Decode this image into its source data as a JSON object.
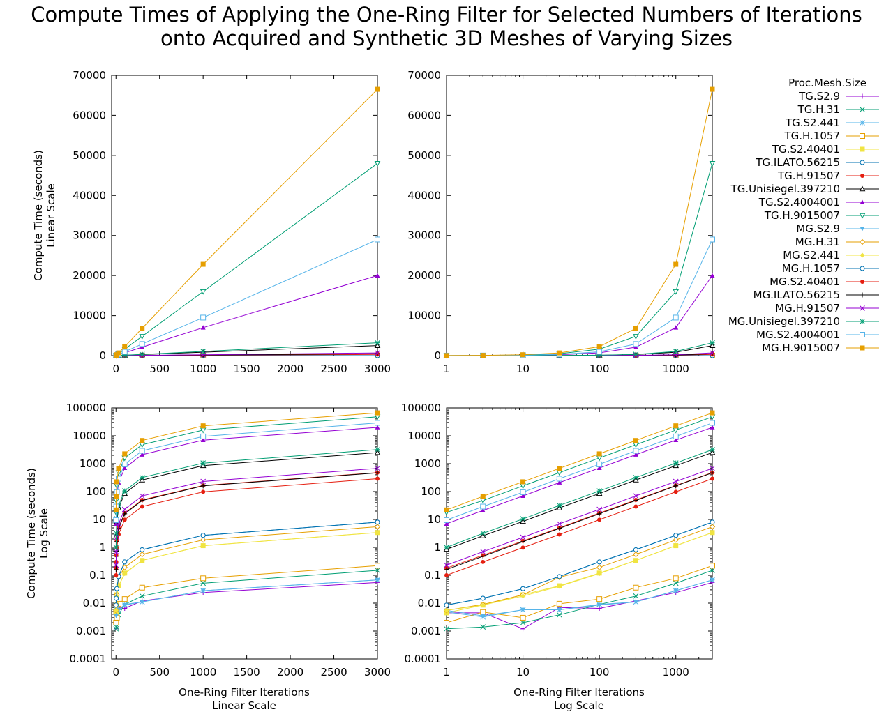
{
  "figure": {
    "title_line1": "Compute Times of Applying the One-Ring Filter for Selected Numbers of Iterations",
    "title_line2": "onto Acquired and Synthetic 3D Meshes of Varying Sizes",
    "legend_title": "Proc.Mesh.Size",
    "ylabel_top": [
      "Compute Time (seconds)",
      "Linear Scale"
    ],
    "ylabel_bottom": [
      "Compute Time (seconds)",
      "Log Scale"
    ],
    "xlabel_left": [
      "One-Ring Filter Iterations",
      "Linear Scale"
    ],
    "xlabel_right": [
      "One-Ring Filter Iterations",
      "Log Scale"
    ]
  },
  "chart_data": {
    "type": "line",
    "x": [
      1,
      3,
      10,
      30,
      100,
      300,
      1000,
      3000
    ],
    "series": [
      {
        "name": "TG.S2.9",
        "color": "#9400d3",
        "marker": "plus",
        "values": [
          0.0045,
          0.0045,
          0.0012,
          0.007,
          0.0065,
          0.012,
          0.024,
          0.055
        ]
      },
      {
        "name": "TG.H.31",
        "color": "#009e73",
        "marker": "cross",
        "values": [
          0.0012,
          0.0014,
          0.002,
          0.0038,
          0.009,
          0.018,
          0.052,
          0.15
        ]
      },
      {
        "name": "TG.S2.441",
        "color": "#56b4e9",
        "marker": "star",
        "values": [
          0.0048,
          0.0032,
          0.0058,
          0.0058,
          0.009,
          0.011,
          0.028,
          0.068
        ]
      },
      {
        "name": "TG.H.1057",
        "color": "#e69f00",
        "marker": "box",
        "values": [
          0.002,
          0.0048,
          0.003,
          0.0095,
          0.014,
          0.036,
          0.078,
          0.22
        ]
      },
      {
        "name": "TG.S2.40401",
        "color": "#f0e442",
        "marker": "fbox",
        "values": [
          0.0045,
          0.0085,
          0.02,
          0.042,
          0.12,
          0.34,
          1.15,
          3.4
        ]
      },
      {
        "name": "TG.ILATO.56215",
        "color": "#0072b2",
        "marker": "circle",
        "values": [
          0.0085,
          0.015,
          0.033,
          0.09,
          0.3,
          0.82,
          2.7,
          8.0
        ]
      },
      {
        "name": "TG.H.91507",
        "color": "#e51e10",
        "marker": "fcircle",
        "values": [
          0.18,
          0.52,
          1.7,
          5.0,
          17,
          50,
          165,
          480
        ]
      },
      {
        "name": "TG.Unisiegel.397210",
        "color": "#000000",
        "marker": "tri",
        "values": [
          0.85,
          2.6,
          8.5,
          26,
          85,
          260,
          850,
          2500
        ]
      },
      {
        "name": "TG.S2.4004001",
        "color": "#9400d3",
        "marker": "ftri",
        "values": [
          7.0,
          21,
          70,
          210,
          700,
          2100,
          7000,
          20000
        ]
      },
      {
        "name": "TG.H.9015007",
        "color": "#009e73",
        "marker": "itri",
        "values": [
          18,
          48,
          160,
          480,
          1600,
          4800,
          16000,
          48000
        ]
      },
      {
        "name": "MG.S2.9",
        "color": "#56b4e9",
        "marker": "fitri",
        "values": [
          0.0055,
          0.0035,
          0.0058,
          0.0058,
          0.0085,
          0.011,
          0.028,
          0.068
        ]
      },
      {
        "name": "MG.H.31",
        "color": "#e69f00",
        "marker": "diamond",
        "values": [
          0.0055,
          0.009,
          0.02,
          0.085,
          0.19,
          0.56,
          1.85,
          5.5
        ]
      },
      {
        "name": "MG.S2.441",
        "color": "#f0e442",
        "marker": "fdiamond",
        "values": [
          0.0055,
          0.0085,
          0.018,
          0.04,
          0.115,
          0.34,
          1.15,
          3.4
        ]
      },
      {
        "name": "MG.H.1057",
        "color": "#0072b2",
        "marker": "circle",
        "values": [
          0.0085,
          0.015,
          0.033,
          0.09,
          0.3,
          0.82,
          2.7,
          8.0
        ]
      },
      {
        "name": "MG.S2.40401",
        "color": "#e51e10",
        "marker": "fcircle",
        "values": [
          0.1,
          0.3,
          0.98,
          2.9,
          9.8,
          29,
          98,
          290
        ]
      },
      {
        "name": "MG.ILATO.56215",
        "color": "#000000",
        "marker": "plus",
        "values": [
          0.16,
          0.48,
          1.6,
          4.8,
          16,
          48,
          160,
          470
        ]
      },
      {
        "name": "MG.H.91507",
        "color": "#9400d3",
        "marker": "cross",
        "values": [
          0.23,
          0.7,
          2.3,
          7.0,
          23,
          70,
          230,
          680
        ]
      },
      {
        "name": "MG.Unisiegel.397210",
        "color": "#009e73",
        "marker": "star",
        "values": [
          1.0,
          3.2,
          10.5,
          32,
          105,
          320,
          1050,
          3200
        ]
      },
      {
        "name": "MG.S2.4004001",
        "color": "#56b4e9",
        "marker": "box",
        "values": [
          9.5,
          29,
          95,
          290,
          950,
          2900,
          9500,
          29000
        ]
      },
      {
        "name": "MG.H.9015007",
        "color": "#e69f00",
        "marker": "fbox",
        "values": [
          22,
          68,
          225,
          680,
          2250,
          6800,
          22800,
          66500
        ]
      }
    ],
    "panels": [
      {
        "name": "linear-linear",
        "xscale": "linear",
        "yscale": "linear",
        "xlim": [
          -50,
          3000
        ],
        "ylim": [
          0,
          70000
        ],
        "xticks": [
          0,
          500,
          1000,
          1500,
          2000,
          2500,
          3000
        ],
        "xtick_labels": [
          "0",
          "500",
          "1000",
          "1500",
          "2000",
          "2500",
          "3000"
        ],
        "yticks": [
          0,
          10000,
          20000,
          30000,
          40000,
          50000,
          60000,
          70000
        ],
        "ytick_labels": [
          "0",
          "10000",
          "20000",
          "30000",
          "40000",
          "50000",
          "60000",
          "70000"
        ]
      },
      {
        "name": "log-linear",
        "xscale": "log",
        "yscale": "linear",
        "xlim": [
          1,
          3000
        ],
        "ylim": [
          0,
          70000
        ],
        "xticks": [
          1,
          10,
          100,
          1000
        ],
        "xtick_labels": [
          "1",
          "10",
          "100",
          "1000"
        ],
        "yticks": [
          0,
          10000,
          20000,
          30000,
          40000,
          50000,
          60000,
          70000
        ],
        "ytick_labels": [
          "0",
          "10000",
          "20000",
          "30000",
          "40000",
          "50000",
          "60000",
          "70000"
        ]
      },
      {
        "name": "linear-log",
        "xscale": "linear",
        "yscale": "log",
        "xlim": [
          -50,
          3000
        ],
        "ylim": [
          0.0001,
          100000
        ],
        "xticks": [
          0,
          500,
          1000,
          1500,
          2000,
          2500,
          3000
        ],
        "xtick_labels": [
          "0",
          "500",
          "1000",
          "1500",
          "2000",
          "2500",
          "3000"
        ],
        "yticks": [
          0.0001,
          0.001,
          0.01,
          0.1,
          1,
          10,
          100,
          1000,
          10000,
          100000
        ],
        "ytick_labels": [
          "0.0001",
          "0.001",
          "0.01",
          "0.1",
          "1",
          "10",
          "100",
          "1000",
          "10000",
          "100000"
        ]
      },
      {
        "name": "log-log",
        "xscale": "log",
        "yscale": "log",
        "xlim": [
          1,
          3000
        ],
        "ylim": [
          0.0001,
          100000
        ],
        "xticks": [
          1,
          10,
          100,
          1000
        ],
        "xtick_labels": [
          "1",
          "10",
          "100",
          "1000"
        ],
        "yticks": [
          0.0001,
          0.001,
          0.01,
          0.1,
          1,
          10,
          100,
          1000,
          10000,
          100000
        ],
        "ytick_labels": [
          "0.0001",
          "0.001",
          "0.01",
          "0.1",
          "1",
          "10",
          "100",
          "1000",
          "10000",
          "100000"
        ]
      }
    ],
    "legend_position": "right"
  }
}
